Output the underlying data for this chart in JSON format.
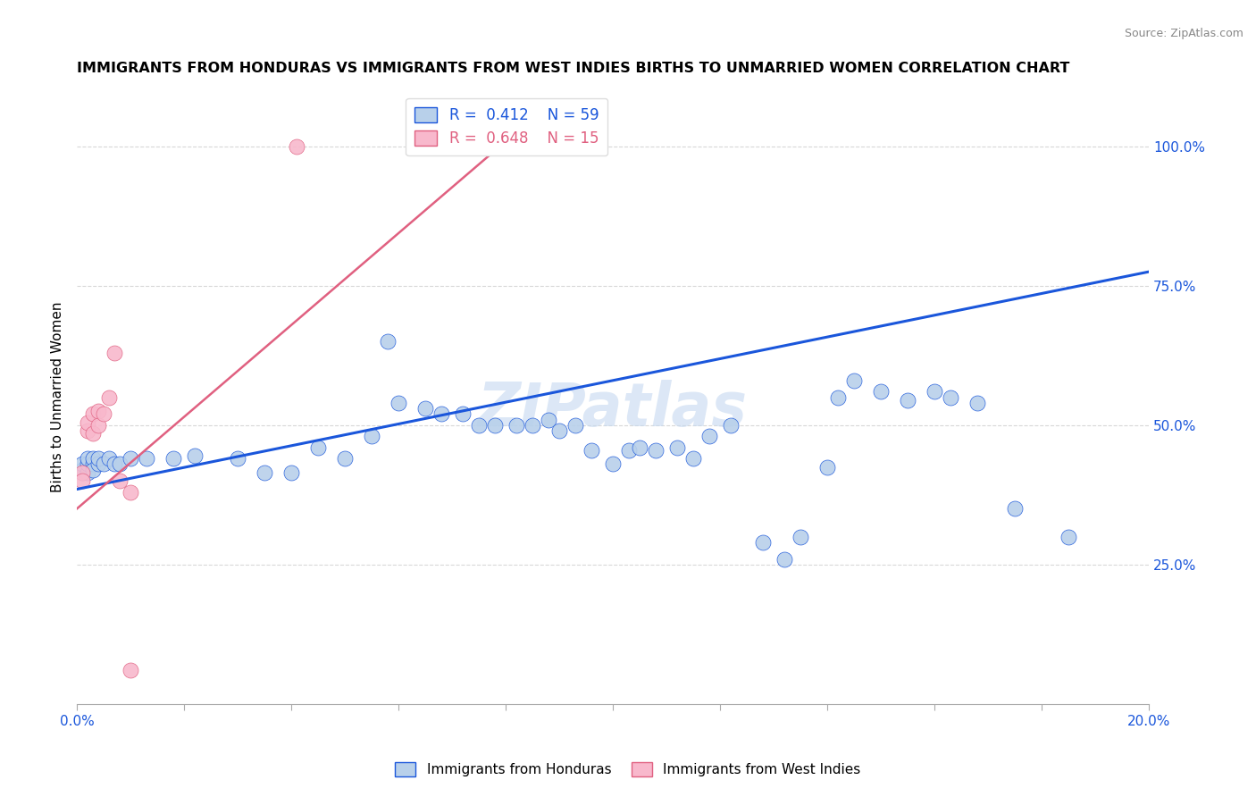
{
  "title": "IMMIGRANTS FROM HONDURAS VS IMMIGRANTS FROM WEST INDIES BIRTHS TO UNMARRIED WOMEN CORRELATION CHART",
  "source": "Source: ZipAtlas.com",
  "ylabel": "Births to Unmarried Women",
  "xlim": [
    0.0,
    0.2
  ],
  "ylim": [
    0.0,
    1.1
  ],
  "yticks": [
    0.25,
    0.5,
    0.75,
    1.0
  ],
  "ytick_labels": [
    "25.0%",
    "50.0%",
    "75.0%",
    "100.0%"
  ],
  "blue_R": 0.412,
  "blue_N": 59,
  "pink_R": 0.648,
  "pink_N": 15,
  "blue_color": "#b8d0ea",
  "blue_line_color": "#1a56db",
  "pink_color": "#f8b8cc",
  "pink_line_color": "#e06080",
  "watermark": "ZIPatlas",
  "title_fontsize": 11.5,
  "source_fontsize": 9,
  "blue_scatter_x": [
    0.001,
    0.001,
    0.001,
    0.002,
    0.002,
    0.002,
    0.003,
    0.003,
    0.003,
    0.004,
    0.004,
    0.005,
    0.006,
    0.007,
    0.008,
    0.01,
    0.013,
    0.018,
    0.022,
    0.03,
    0.035,
    0.04,
    0.045,
    0.05,
    0.055,
    0.058,
    0.06,
    0.065,
    0.068,
    0.072,
    0.075,
    0.078,
    0.082,
    0.085,
    0.088,
    0.09,
    0.093,
    0.096,
    0.1,
    0.103,
    0.105,
    0.108,
    0.112,
    0.115,
    0.118,
    0.122,
    0.128,
    0.132,
    0.135,
    0.14,
    0.142,
    0.145,
    0.15,
    0.155,
    0.16,
    0.163,
    0.168,
    0.175,
    0.185
  ],
  "blue_scatter_y": [
    0.415,
    0.42,
    0.43,
    0.415,
    0.43,
    0.44,
    0.43,
    0.44,
    0.42,
    0.43,
    0.44,
    0.43,
    0.44,
    0.43,
    0.43,
    0.44,
    0.44,
    0.44,
    0.445,
    0.44,
    0.415,
    0.415,
    0.46,
    0.44,
    0.48,
    0.65,
    0.54,
    0.53,
    0.52,
    0.52,
    0.5,
    0.5,
    0.5,
    0.5,
    0.51,
    0.49,
    0.5,
    0.455,
    0.43,
    0.455,
    0.46,
    0.455,
    0.46,
    0.44,
    0.48,
    0.5,
    0.29,
    0.26,
    0.3,
    0.425,
    0.55,
    0.58,
    0.56,
    0.545,
    0.56,
    0.55,
    0.54,
    0.35,
    0.3
  ],
  "pink_scatter_x": [
    0.001,
    0.001,
    0.002,
    0.002,
    0.003,
    0.003,
    0.004,
    0.004,
    0.005,
    0.006,
    0.007,
    0.008,
    0.01,
    0.041,
    0.01
  ],
  "pink_scatter_y": [
    0.415,
    0.4,
    0.49,
    0.505,
    0.485,
    0.52,
    0.525,
    0.5,
    0.52,
    0.55,
    0.63,
    0.4,
    0.38,
    1.0,
    0.06
  ],
  "blue_line_x0": 0.0,
  "blue_line_y0": 0.385,
  "blue_line_x1": 0.2,
  "blue_line_y1": 0.775,
  "pink_line_x0": 0.0,
  "pink_line_y0": 0.35,
  "pink_line_x1": 0.085,
  "pink_line_y1": 1.05,
  "background_color": "#ffffff",
  "grid_color": "#d8d8d8"
}
